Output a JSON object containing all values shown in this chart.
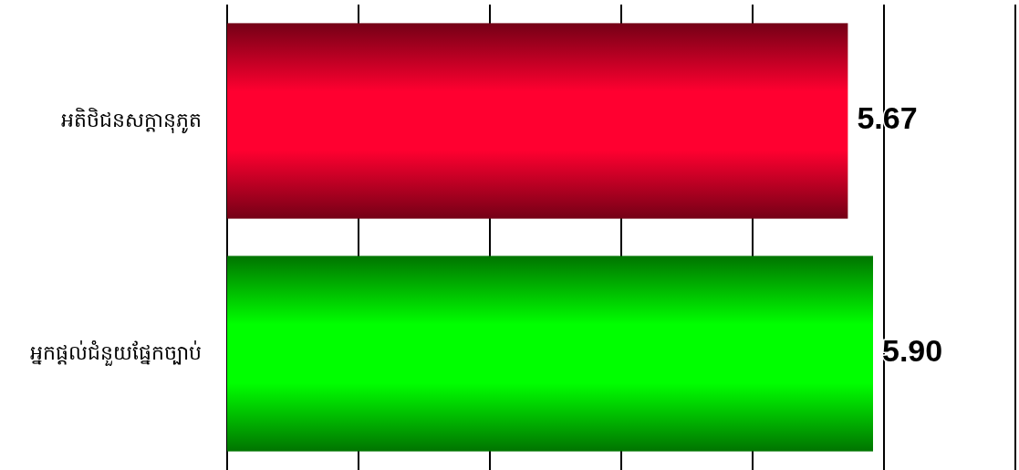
{
  "chart_data": {
    "type": "bar",
    "orientation": "horizontal",
    "categories": [
      "អតិថិជនសក្ដានុភូត",
      "អ្នកផ្ដល់ជំនួយផ្នែកច្បាប់"
    ],
    "values": [
      5.67,
      5.9
    ],
    "colors": [
      "#ff0030",
      "#00ff00"
    ],
    "xlim": [
      0,
      7.2
    ],
    "xticks": [
      {
        "value": 0,
        "label": null
      },
      {
        "value": 1.2,
        "label": null
      },
      {
        "value": 2.4,
        "label": null
      },
      {
        "value": 3.6,
        "label": null
      },
      {
        "value": 4.8,
        "label": null
      },
      {
        "value": 6,
        "label": null
      },
      {
        "value": 7.2,
        "label": null
      }
    ],
    "value_labels": [
      "5.67",
      "5.90"
    ],
    "grid": "x",
    "tick_labels": "y"
  }
}
